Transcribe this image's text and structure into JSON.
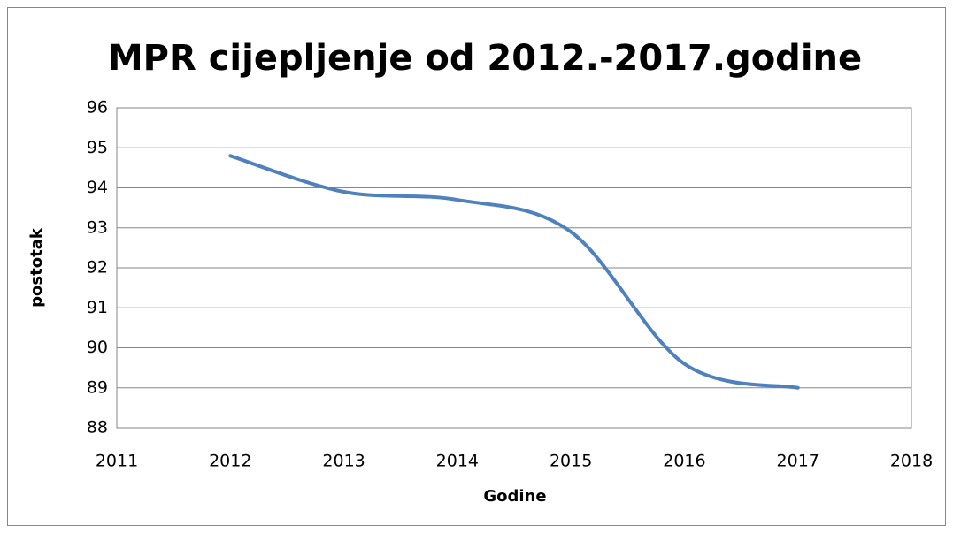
{
  "chart_data": {
    "type": "line",
    "title": "MPR cijepljenje od 2012.-2017.godine",
    "x_label": "Godine",
    "y_label": "postotak",
    "x": [
      2012,
      2013,
      2014,
      2015,
      2016,
      2017
    ],
    "values": [
      94.8,
      93.9,
      93.7,
      92.9,
      89.6,
      89.0
    ],
    "color": "#4f81bd",
    "smooth": true,
    "xlim": [
      2011,
      2018
    ],
    "xticks": [
      2011,
      2012,
      2013,
      2014,
      2015,
      2016,
      2017,
      2018
    ],
    "ylim": [
      88,
      96
    ],
    "yticks": [
      88,
      89,
      90,
      91,
      92,
      93,
      94,
      95,
      96
    ],
    "grid": true
  }
}
